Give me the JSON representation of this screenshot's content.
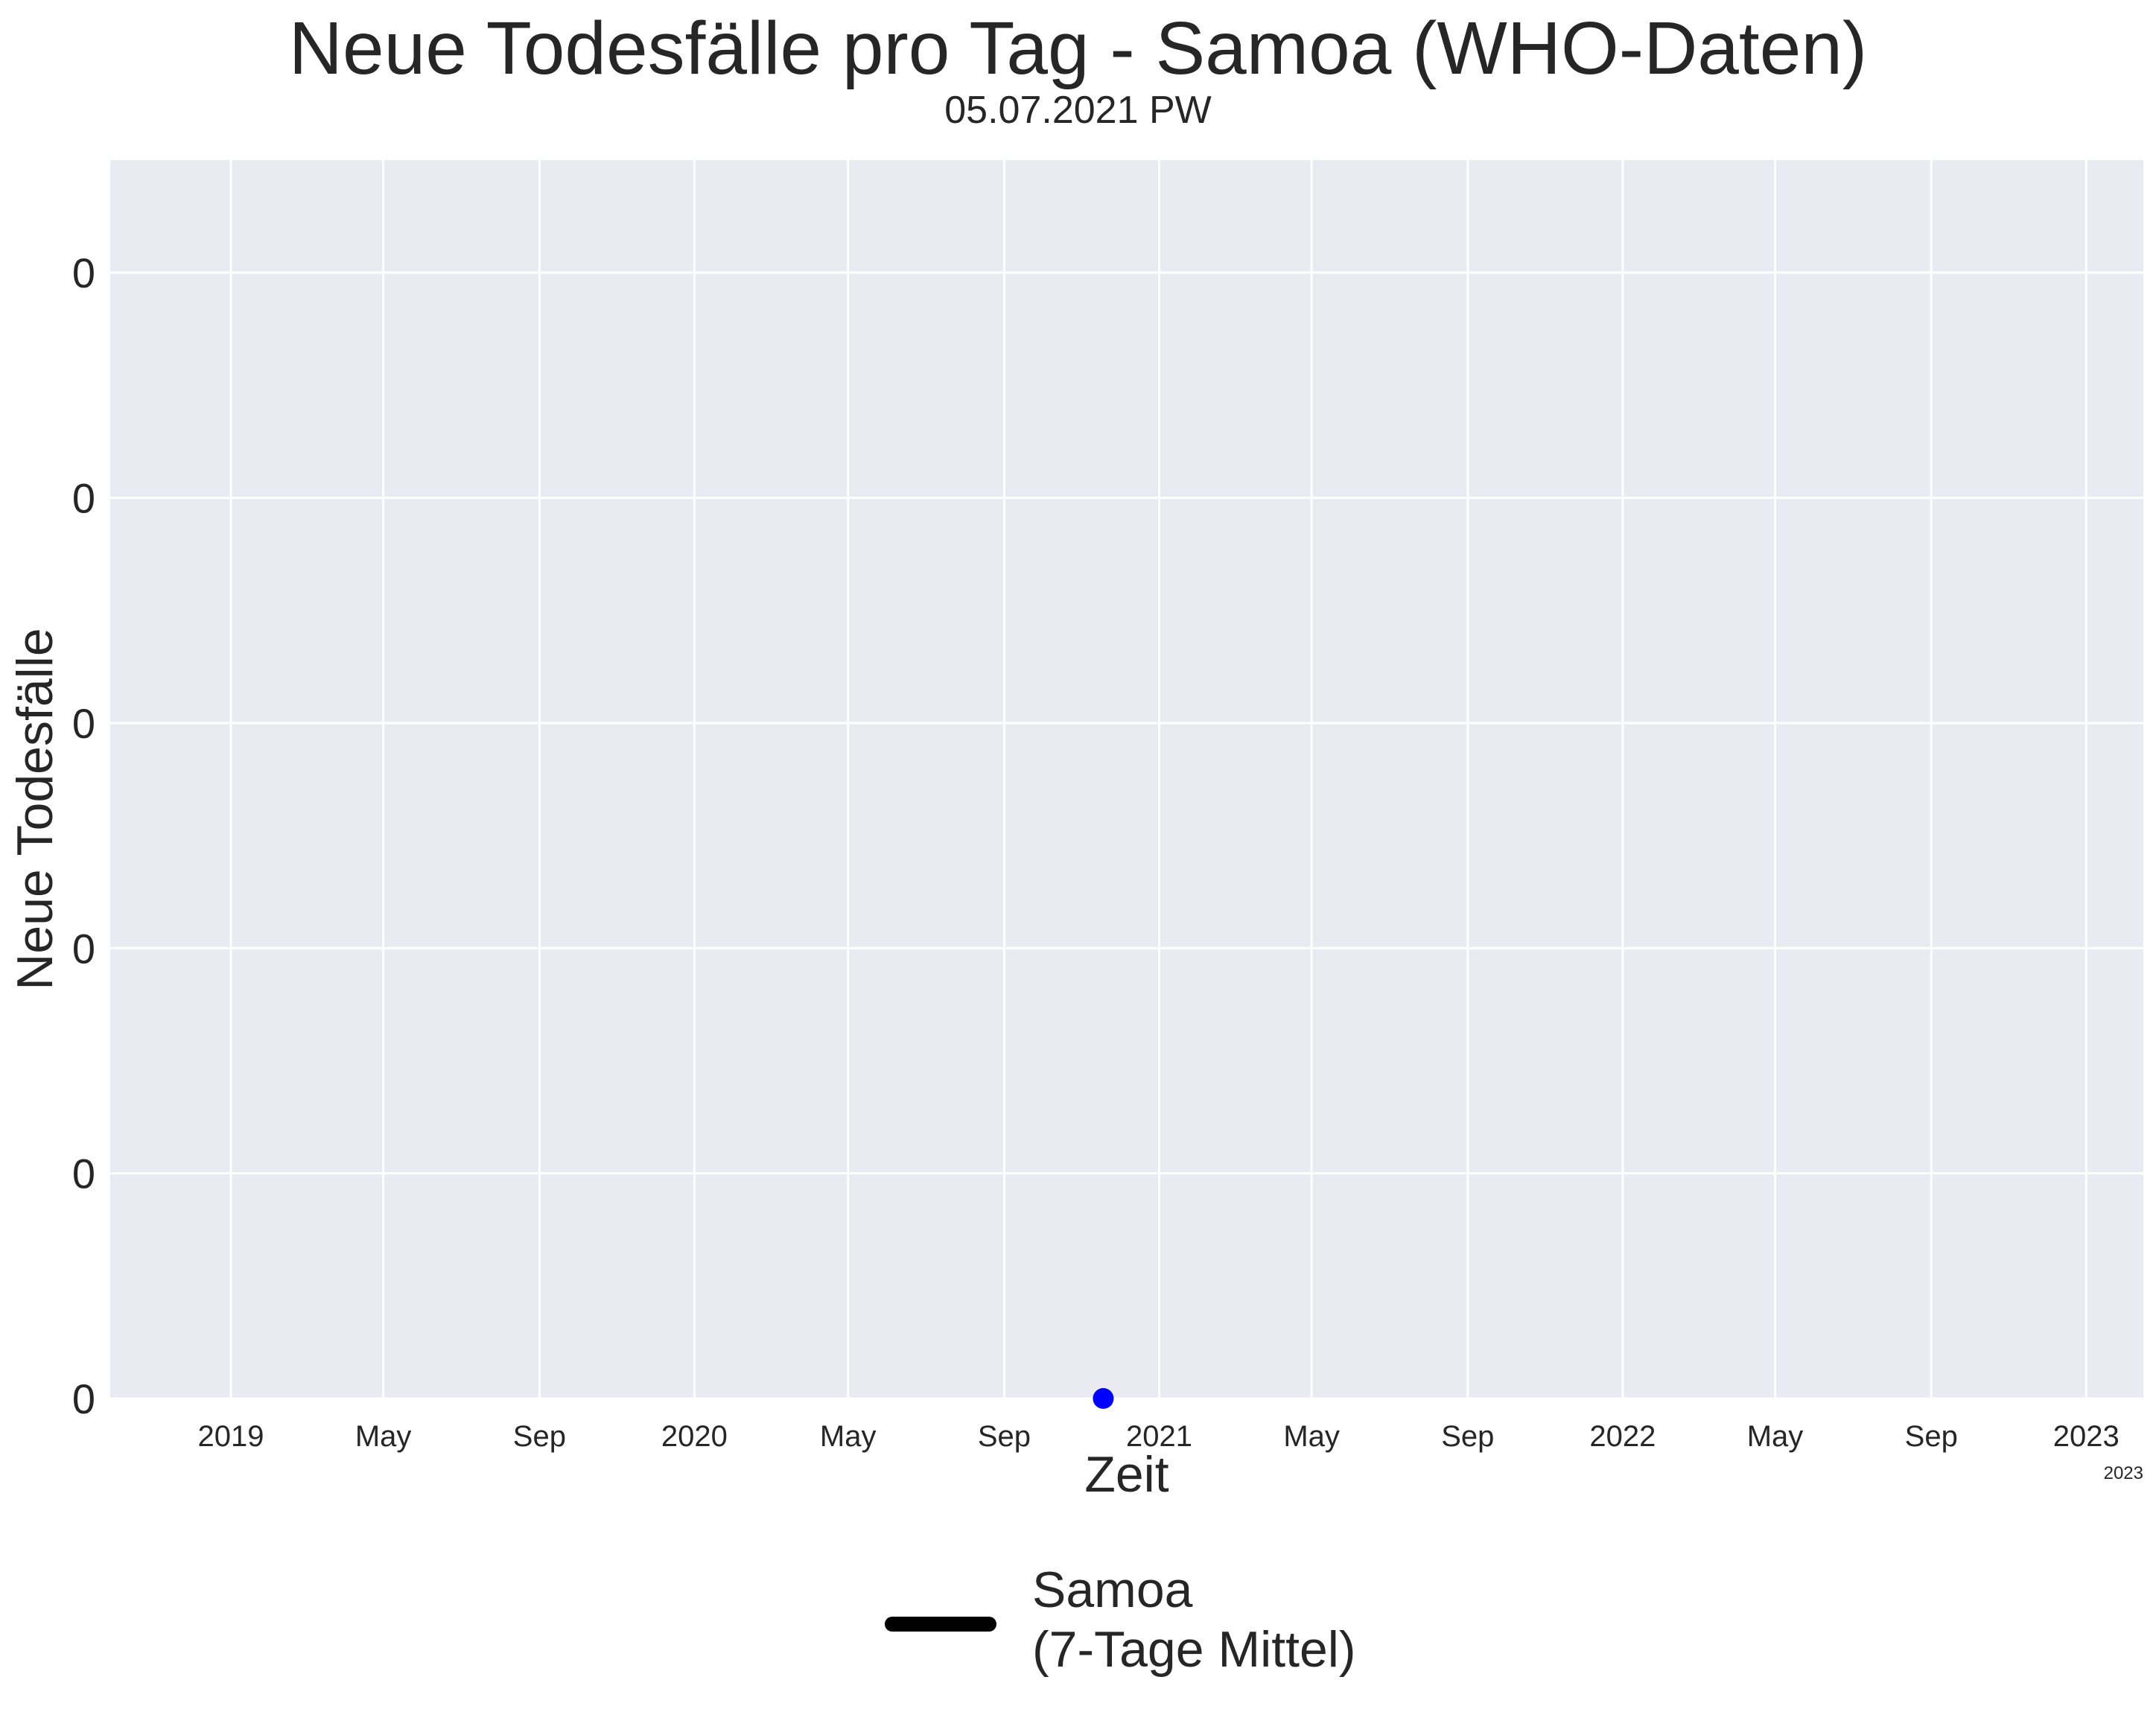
{
  "chart_data": {
    "type": "line",
    "title": "Neue Todesfälle pro Tag - Samoa (WHO-Daten)",
    "subtitle": "05.07.2021 PW",
    "xlabel": "Zeit",
    "ylabel": "Neue Todesfälle",
    "x_ticks": [
      "2019",
      "May",
      "Sep",
      "2020",
      "May",
      "Sep",
      "2021",
      "May",
      "Sep",
      "2022",
      "May",
      "Sep",
      "2023"
    ],
    "x_tick_dates": [
      "2019-01-01",
      "2019-05-01",
      "2019-09-01",
      "2020-01-01",
      "2020-05-01",
      "2020-09-01",
      "2021-01-01",
      "2021-05-01",
      "2021-09-01",
      "2022-01-01",
      "2022-05-01",
      "2022-09-01",
      "2023-01-01"
    ],
    "x_offset_label": "2023",
    "y_ticks": [
      "0",
      "0",
      "0",
      "0",
      "0",
      "0"
    ],
    "xlim": [
      "2018-09-28",
      "2023-02-15"
    ],
    "ylim": [
      0,
      0.055
    ],
    "grid": true,
    "legend_position": "bottom-center",
    "series": [
      {
        "name": "Samoa\n(7-Tage Mittel)",
        "color": "#000000",
        "values": []
      }
    ],
    "markers": [
      {
        "x": "2020-11-18",
        "y": 0,
        "color": "#0000ff"
      }
    ],
    "background_color": "#eaeaf2",
    "grid_color": "#ffffff"
  }
}
